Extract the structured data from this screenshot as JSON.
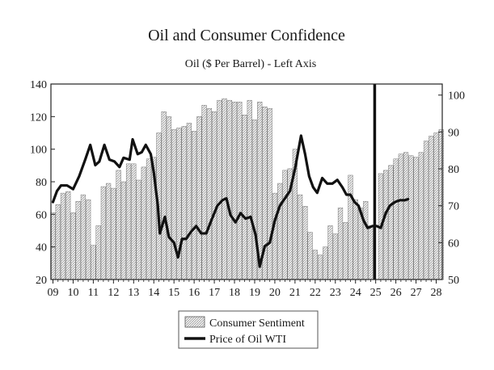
{
  "chart_data": {
    "type": "bar",
    "title": "Oil and Consumer Confidence",
    "subtitle": "Oil ($ Per Barrel) - Left Axis",
    "x_tick_labels": [
      "09",
      "10",
      "11",
      "12",
      "13",
      "14",
      "15",
      "16",
      "17",
      "18",
      "19",
      "20",
      "21",
      "22",
      "23",
      "24",
      "25",
      "26",
      "27",
      "28"
    ],
    "x_start": 2009,
    "x_range": [
      2008.9,
      2028.3
    ],
    "marker_year": 2024.95,
    "y_left": {
      "ticks": [
        20,
        40,
        60,
        80,
        100,
        120,
        140
      ],
      "range": [
        20,
        140
      ]
    },
    "y_right": {
      "ticks": [
        50,
        60,
        70,
        80,
        90,
        100
      ],
      "range": [
        50,
        103
      ]
    },
    "legend": {
      "placement": "bottom-center"
    },
    "grid": false,
    "series": [
      {
        "name": "Consumer Sentiment",
        "kind": "bar",
        "axis": "left",
        "color": "#cfcfcf",
        "values": [
          [
            2009.0,
            61
          ],
          [
            2009.25,
            66
          ],
          [
            2009.5,
            73
          ],
          [
            2009.75,
            74
          ],
          [
            2010.0,
            61
          ],
          [
            2010.25,
            68
          ],
          [
            2010.5,
            72
          ],
          [
            2010.75,
            69
          ],
          [
            2011.0,
            41
          ],
          [
            2011.25,
            53
          ],
          [
            2011.5,
            77
          ],
          [
            2011.75,
            79
          ],
          [
            2012.0,
            76
          ],
          [
            2012.25,
            87
          ],
          [
            2012.5,
            80
          ],
          [
            2012.75,
            91
          ],
          [
            2013.0,
            91
          ],
          [
            2013.25,
            81
          ],
          [
            2013.5,
            89
          ],
          [
            2013.75,
            94
          ],
          [
            2014.0,
            95
          ],
          [
            2014.25,
            110
          ],
          [
            2014.5,
            123
          ],
          [
            2014.75,
            120
          ],
          [
            2015.0,
            112
          ],
          [
            2015.25,
            113
          ],
          [
            2015.5,
            114
          ],
          [
            2015.75,
            116
          ],
          [
            2016.0,
            111
          ],
          [
            2016.25,
            120
          ],
          [
            2016.5,
            127
          ],
          [
            2016.75,
            125
          ],
          [
            2017.0,
            123
          ],
          [
            2017.25,
            130
          ],
          [
            2017.5,
            131
          ],
          [
            2017.75,
            130
          ],
          [
            2018.0,
            129
          ],
          [
            2018.25,
            129
          ],
          [
            2018.5,
            121
          ],
          [
            2018.75,
            130
          ],
          [
            2019.0,
            118
          ],
          [
            2019.25,
            129
          ],
          [
            2019.5,
            126
          ],
          [
            2019.75,
            125
          ],
          [
            2020.0,
            73
          ],
          [
            2020.25,
            79
          ],
          [
            2020.5,
            87
          ],
          [
            2020.75,
            88
          ],
          [
            2021.0,
            100
          ],
          [
            2021.25,
            72
          ],
          [
            2021.5,
            65
          ],
          [
            2021.75,
            49
          ],
          [
            2022.0,
            38
          ],
          [
            2022.25,
            35
          ],
          [
            2022.5,
            40
          ],
          [
            2022.75,
            53
          ],
          [
            2023.0,
            48
          ],
          [
            2023.25,
            64
          ],
          [
            2023.5,
            55
          ],
          [
            2023.75,
            84
          ],
          [
            2024.0,
            69
          ],
          [
            2024.25,
            64
          ],
          [
            2024.5,
            68
          ],
          [
            2024.75,
            53
          ],
          [
            2025.25,
            85
          ],
          [
            2025.5,
            87
          ],
          [
            2025.75,
            90
          ],
          [
            2026.0,
            94
          ],
          [
            2026.25,
            97
          ],
          [
            2026.5,
            98
          ],
          [
            2026.75,
            96
          ],
          [
            2027.0,
            95
          ],
          [
            2027.25,
            98
          ],
          [
            2027.5,
            105
          ],
          [
            2027.75,
            108
          ],
          [
            2028.0,
            110
          ],
          [
            2028.25,
            112
          ]
        ]
      },
      {
        "name": "Price of Oil WTI",
        "kind": "line",
        "axis": "right",
        "color": "#111111",
        "values": [
          [
            2009.0,
            71
          ],
          [
            2009.2,
            74
          ],
          [
            2009.4,
            75.5
          ],
          [
            2009.7,
            75.5
          ],
          [
            2010.0,
            74.5
          ],
          [
            2010.3,
            78
          ],
          [
            2010.6,
            82.5
          ],
          [
            2010.85,
            86.5
          ],
          [
            2011.1,
            81
          ],
          [
            2011.3,
            82
          ],
          [
            2011.55,
            86.5
          ],
          [
            2011.8,
            82.5
          ],
          [
            2012.05,
            82
          ],
          [
            2012.3,
            80.5
          ],
          [
            2012.5,
            83
          ],
          [
            2012.8,
            82.5
          ],
          [
            2012.95,
            88
          ],
          [
            2013.2,
            84
          ],
          [
            2013.4,
            84.5
          ],
          [
            2013.6,
            86.5
          ],
          [
            2013.85,
            84
          ],
          [
            2014.0,
            79
          ],
          [
            2014.2,
            70
          ],
          [
            2014.3,
            62.5
          ],
          [
            2014.55,
            67
          ],
          [
            2014.75,
            61.5
          ],
          [
            2015.0,
            60
          ],
          [
            2015.2,
            56
          ],
          [
            2015.4,
            61
          ],
          [
            2015.6,
            61
          ],
          [
            2015.85,
            63
          ],
          [
            2016.1,
            64.5
          ],
          [
            2016.35,
            62.5
          ],
          [
            2016.6,
            62.5
          ],
          [
            2016.85,
            66
          ],
          [
            2017.15,
            70
          ],
          [
            2017.4,
            71.5
          ],
          [
            2017.6,
            72
          ],
          [
            2017.8,
            67.5
          ],
          [
            2018.05,
            65.5
          ],
          [
            2018.3,
            68
          ],
          [
            2018.55,
            66.5
          ],
          [
            2018.8,
            67
          ],
          [
            2019.05,
            62
          ],
          [
            2019.25,
            53.5
          ],
          [
            2019.5,
            59
          ],
          [
            2019.75,
            60
          ],
          [
            2020.0,
            66
          ],
          [
            2020.25,
            70
          ],
          [
            2020.5,
            72
          ],
          [
            2020.75,
            74
          ],
          [
            2021.0,
            80
          ],
          [
            2021.3,
            89
          ],
          [
            2021.5,
            84
          ],
          [
            2021.7,
            78
          ],
          [
            2021.9,
            75
          ],
          [
            2022.1,
            73.5
          ],
          [
            2022.35,
            77.5
          ],
          [
            2022.6,
            76
          ],
          [
            2022.85,
            76
          ],
          [
            2023.1,
            77
          ],
          [
            2023.35,
            75
          ],
          [
            2023.55,
            73
          ],
          [
            2023.75,
            73
          ],
          [
            2023.95,
            71
          ],
          [
            2024.15,
            70
          ],
          [
            2024.4,
            66
          ],
          [
            2024.6,
            64
          ],
          [
            2024.85,
            64.5
          ],
          [
            2025.05,
            64.5
          ],
          [
            2025.25,
            64
          ],
          [
            2025.5,
            68
          ],
          [
            2025.7,
            70
          ],
          [
            2025.95,
            71
          ],
          [
            2026.2,
            71.5
          ],
          [
            2026.45,
            71.5
          ],
          [
            2026.6,
            71.8
          ]
        ]
      }
    ]
  }
}
